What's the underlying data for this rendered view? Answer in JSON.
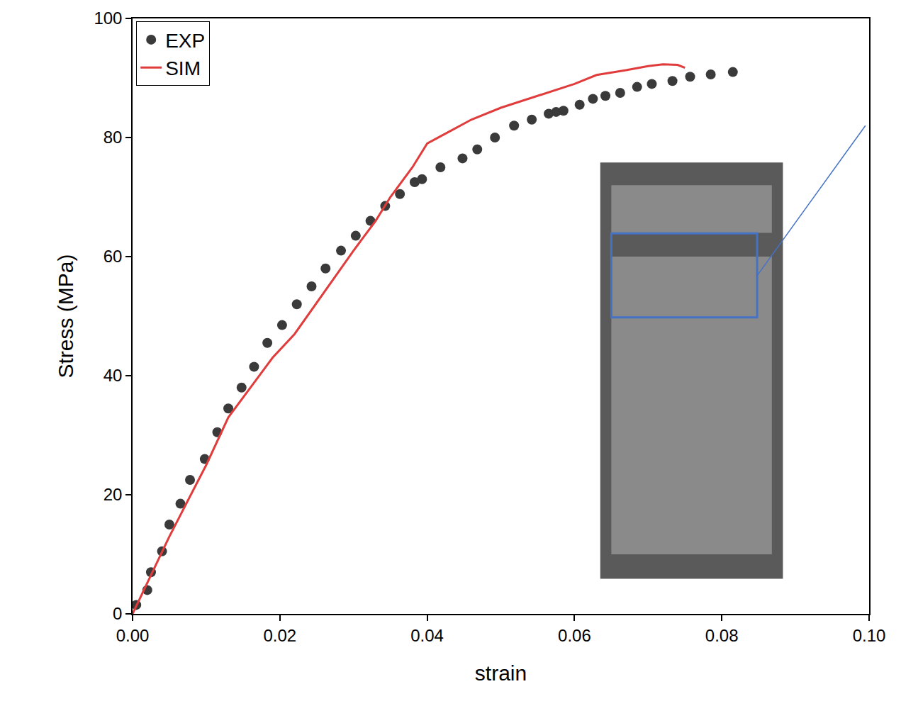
{
  "chart_data": {
    "type": "scatter",
    "x_label": "strain",
    "y_label": "Stress (MPa)",
    "xlim": [
      0,
      0.1
    ],
    "ylim": [
      0,
      100
    ],
    "xticks": [
      {
        "value": 0,
        "label": "0.00"
      },
      {
        "value": 0.02,
        "label": "0.02"
      },
      {
        "value": 0.04,
        "label": "0.04"
      },
      {
        "value": 0.06,
        "label": "0.06"
      },
      {
        "value": 0.08,
        "label": "0.08"
      },
      {
        "value": 0.1,
        "label": "0.10"
      }
    ],
    "yticks": [
      0,
      20,
      40,
      60,
      80,
      100
    ],
    "grid": false,
    "legend": "top left",
    "series": [
      {
        "name": "EXP",
        "type": "scatter",
        "marker": "circle",
        "color": "#3a3a3a",
        "x": [
          0.0005,
          0.002,
          0.0025,
          0.004,
          0.005,
          0.0065,
          0.0078,
          0.0098,
          0.0115,
          0.013,
          0.0148,
          0.0165,
          0.0183,
          0.0203,
          0.0223,
          0.0243,
          0.0262,
          0.0283,
          0.0303,
          0.0323,
          0.0343,
          0.0363,
          0.0383,
          0.0393,
          0.0418,
          0.0448,
          0.0468,
          0.0492,
          0.0518,
          0.0542,
          0.0565,
          0.0575,
          0.0585,
          0.0607,
          0.0625,
          0.0642,
          0.0662,
          0.0685,
          0.0705,
          0.0733,
          0.0757,
          0.0785,
          0.0815
        ],
        "values": [
          1.5,
          4,
          7,
          10.5,
          15,
          18.5,
          22.5,
          26,
          30.5,
          34.5,
          38,
          41.5,
          45.5,
          48.5,
          52,
          55,
          58,
          61,
          63.5,
          66,
          68.5,
          70.5,
          72.5,
          73,
          75,
          76.5,
          78,
          80,
          82,
          83,
          84,
          84.3,
          84.5,
          85.5,
          86.5,
          87,
          87.5,
          88.5,
          89,
          89.5,
          90.2,
          90.6,
          91
        ]
      },
      {
        "name": "SIM",
        "type": "line",
        "line_style": "solid",
        "color": "#e03c3c",
        "x": [
          0,
          0.005,
          0.01,
          0.013,
          0.016,
          0.019,
          0.022,
          0.026,
          0.03,
          0.033,
          0.035,
          0.038,
          0.04,
          0.043,
          0.046,
          0.05,
          0.055,
          0.06,
          0.063,
          0.067,
          0.07,
          0.072,
          0.074,
          0.075
        ],
        "values": [
          0,
          13,
          25,
          33,
          38,
          43,
          47,
          54,
          61,
          66,
          70,
          75,
          79,
          81,
          83,
          85,
          87,
          89,
          90.5,
          91.3,
          92,
          92.3,
          92.2,
          91.7
        ]
      }
    ]
  }
}
